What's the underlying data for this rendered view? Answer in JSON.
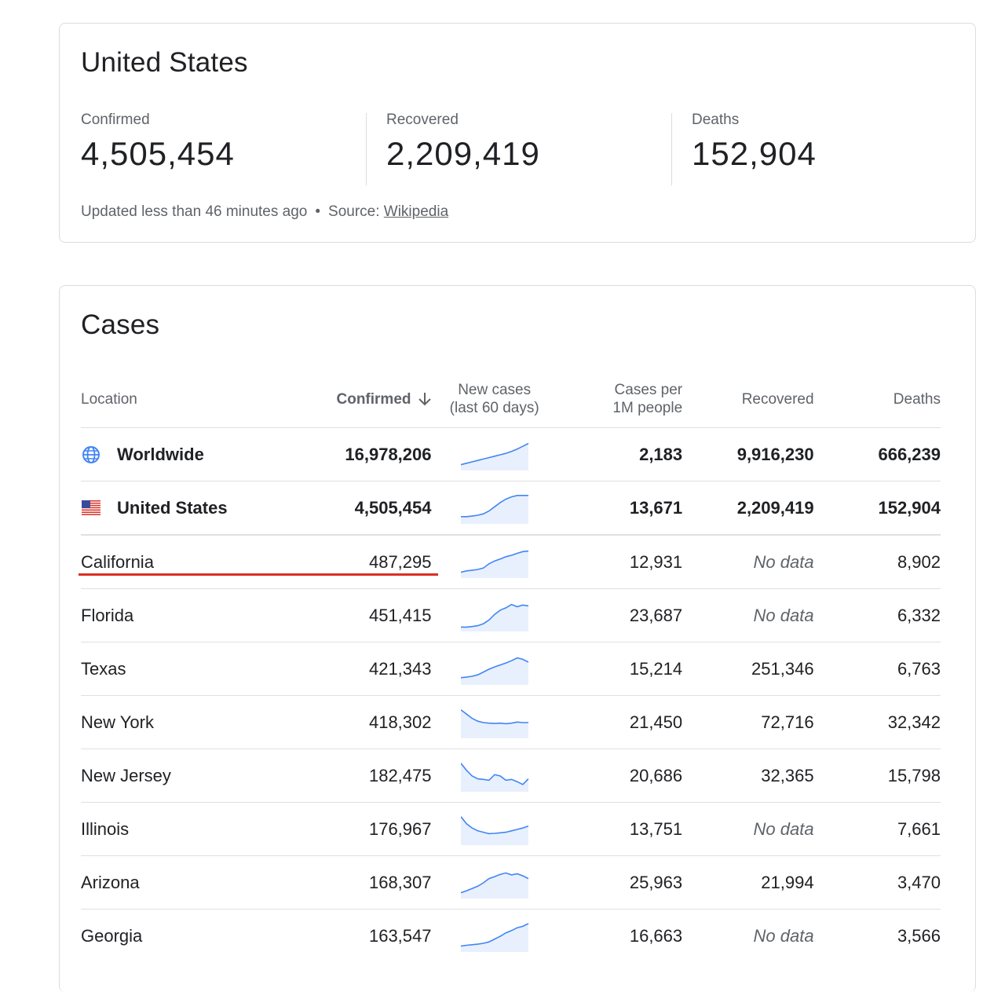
{
  "summary": {
    "title": "United States",
    "confirmed_label": "Confirmed",
    "confirmed_value": "4,505,454",
    "recovered_label": "Recovered",
    "recovered_value": "2,209,419",
    "deaths_label": "Deaths",
    "deaths_value": "152,904",
    "updated_text": "Updated less than 46 minutes ago",
    "source_label": "Source:",
    "source_link": "Wikipedia"
  },
  "cases": {
    "title": "Cases",
    "headers": {
      "location": "Location",
      "confirmed": "Confirmed",
      "new_cases_1": "New cases",
      "new_cases_2": "(last 60 days)",
      "per_million_1": "Cases per",
      "per_million_2": "1M people",
      "recovered": "Recovered",
      "deaths": "Deaths"
    },
    "rows": [
      {
        "location": "Worldwide",
        "confirmed": "16,978,206",
        "per_million": "2,183",
        "recovered": "9,916,230",
        "deaths": "666,239",
        "spark": [
          0.15,
          0.2,
          0.25,
          0.3,
          0.35,
          0.4,
          0.45,
          0.5,
          0.55,
          0.62,
          0.7,
          0.8,
          0.9
        ]
      },
      {
        "location": "United States",
        "confirmed": "4,505,454",
        "per_million": "13,671",
        "recovered": "2,209,419",
        "deaths": "152,904",
        "spark": [
          0.2,
          0.2,
          0.22,
          0.25,
          0.3,
          0.4,
          0.55,
          0.7,
          0.82,
          0.9,
          0.95,
          0.95,
          0.95
        ]
      },
      {
        "location": "California",
        "confirmed": "487,295",
        "per_million": "12,931",
        "recovered": "No data",
        "deaths": "8,902",
        "spark": [
          0.15,
          0.2,
          0.22,
          0.25,
          0.3,
          0.45,
          0.55,
          0.62,
          0.7,
          0.75,
          0.82,
          0.88,
          0.9
        ]
      },
      {
        "location": "Florida",
        "confirmed": "451,415",
        "per_million": "23,687",
        "recovered": "No data",
        "deaths": "6,332",
        "spark": [
          0.1,
          0.1,
          0.12,
          0.15,
          0.22,
          0.35,
          0.55,
          0.7,
          0.78,
          0.9,
          0.82,
          0.88,
          0.85
        ]
      },
      {
        "location": "Texas",
        "confirmed": "421,343",
        "per_million": "15,214",
        "recovered": "251,346",
        "deaths": "6,763",
        "spark": [
          0.2,
          0.22,
          0.25,
          0.3,
          0.4,
          0.5,
          0.58,
          0.65,
          0.72,
          0.8,
          0.9,
          0.85,
          0.75
        ]
      },
      {
        "location": "New York",
        "confirmed": "418,302",
        "per_million": "21,450",
        "recovered": "72,716",
        "deaths": "32,342",
        "spark": [
          0.95,
          0.8,
          0.65,
          0.55,
          0.5,
          0.48,
          0.47,
          0.48,
          0.46,
          0.48,
          0.52,
          0.5,
          0.5
        ]
      },
      {
        "location": "New Jersey",
        "confirmed": "182,475",
        "per_million": "20,686",
        "recovered": "32,365",
        "deaths": "15,798",
        "spark": [
          0.95,
          0.7,
          0.5,
          0.4,
          0.38,
          0.35,
          0.55,
          0.5,
          0.35,
          0.38,
          0.3,
          0.2,
          0.4
        ]
      },
      {
        "location": "Illinois",
        "confirmed": "176,967",
        "per_million": "13,751",
        "recovered": "No data",
        "deaths": "7,661",
        "spark": [
          0.95,
          0.7,
          0.55,
          0.45,
          0.4,
          0.35,
          0.36,
          0.38,
          0.4,
          0.45,
          0.5,
          0.55,
          0.62
        ]
      },
      {
        "location": "Arizona",
        "confirmed": "168,307",
        "per_million": "25,963",
        "recovered": "21,994",
        "deaths": "3,470",
        "spark": [
          0.15,
          0.22,
          0.3,
          0.38,
          0.5,
          0.65,
          0.72,
          0.8,
          0.85,
          0.78,
          0.82,
          0.75,
          0.65
        ]
      },
      {
        "location": "Georgia",
        "confirmed": "163,547",
        "per_million": "16,663",
        "recovered": "No data",
        "deaths": "3,566",
        "spark": [
          0.15,
          0.18,
          0.2,
          0.22,
          0.25,
          0.3,
          0.4,
          0.5,
          0.62,
          0.7,
          0.8,
          0.85,
          0.95
        ]
      }
    ]
  },
  "colors": {
    "spark_line": "#4285f4",
    "spark_fill": "#e8f0fe",
    "highlight": "#d93025"
  }
}
